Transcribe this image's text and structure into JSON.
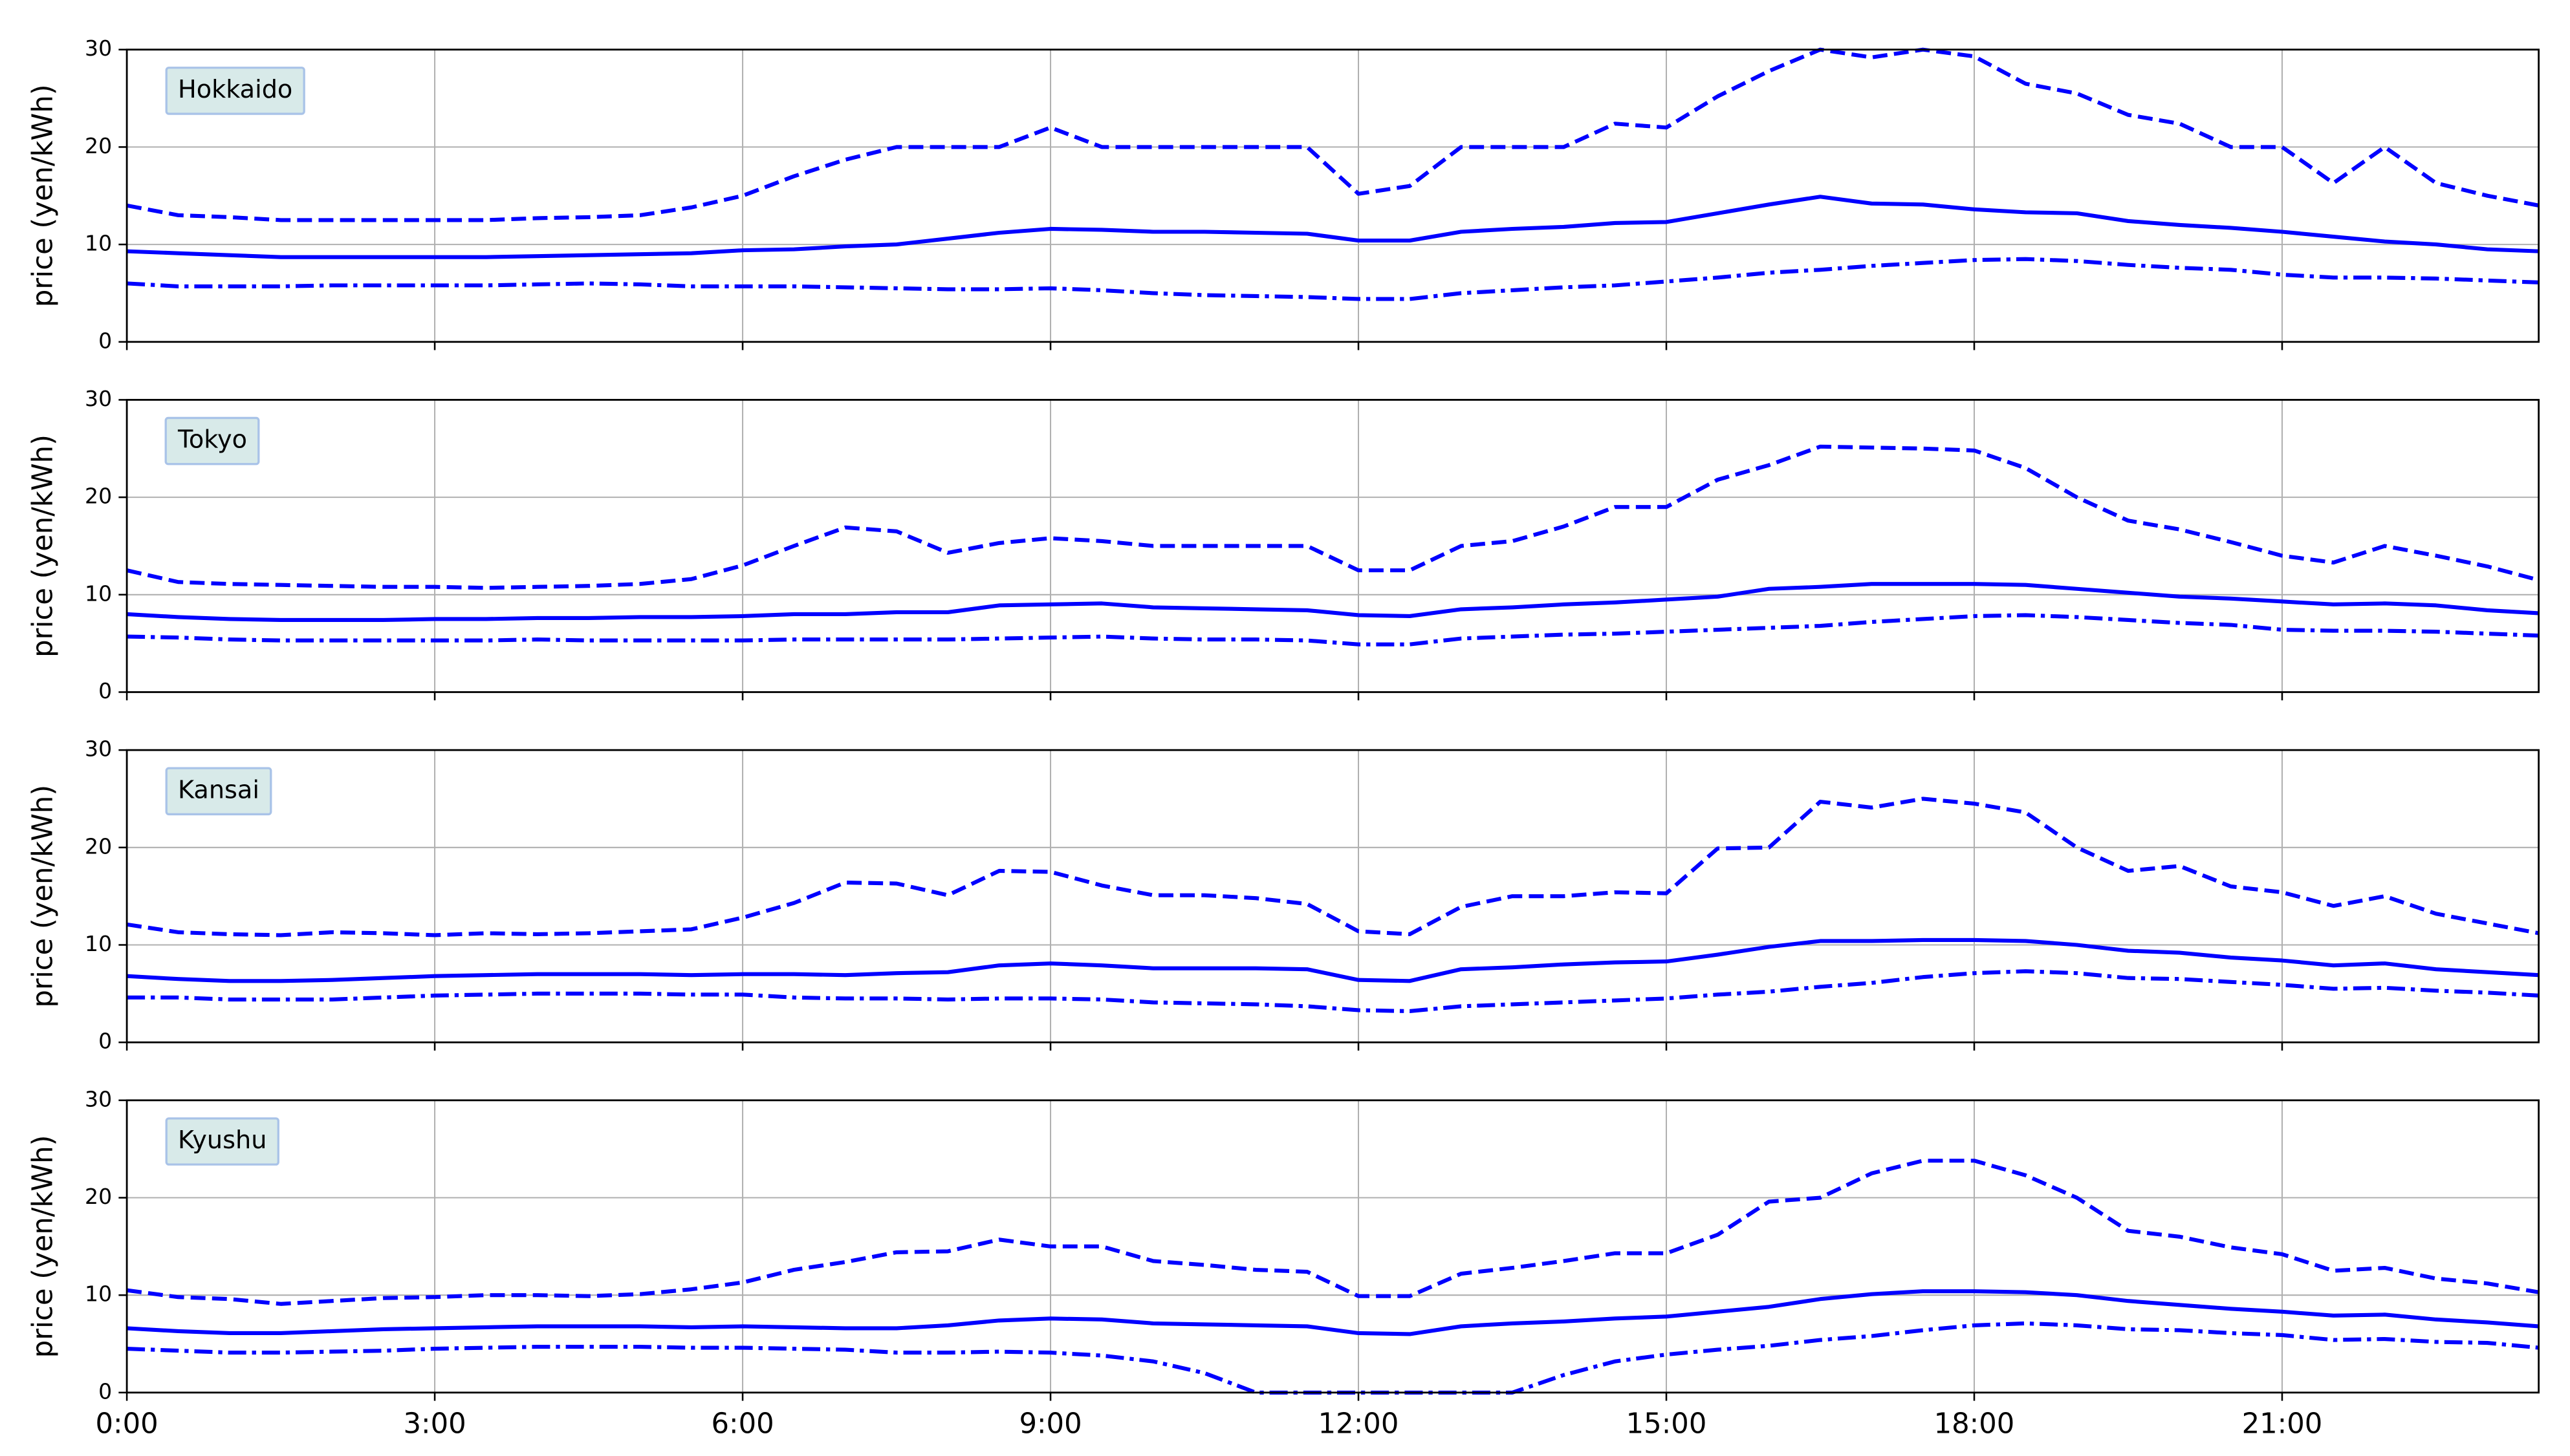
{
  "chart_data": [
    {
      "type": "line",
      "ylabel": "price (yen/kWh)",
      "annotation": "Hokkaido",
      "x": [
        0,
        0.5,
        1,
        1.5,
        2,
        2.5,
        3,
        3.5,
        4,
        4.5,
        5,
        5.5,
        6,
        6.5,
        7,
        7.5,
        8,
        8.5,
        9,
        9.5,
        10,
        10.5,
        11,
        11.5,
        12,
        12.5,
        13,
        13.5,
        14,
        14.5,
        15,
        15.5,
        16,
        16.5,
        17,
        17.5,
        18,
        18.5,
        19,
        19.5,
        20,
        20.5,
        21,
        21.5,
        22,
        22.5,
        23,
        23.5
      ],
      "xlim": [
        0,
        23.5
      ],
      "xticks": [
        0,
        3,
        6,
        9,
        12,
        15,
        18,
        21
      ],
      "ylim": [
        0,
        30
      ],
      "yticks": [
        0,
        10,
        20,
        30
      ],
      "grid": true,
      "series": [
        {
          "color": "#0000ff",
          "linestyle": "dashed",
          "values": [
            14,
            13,
            12.8,
            12.5,
            12.5,
            12.5,
            12.5,
            12.5,
            12.7,
            12.8,
            13,
            13.8,
            15,
            17,
            18.7,
            20,
            20,
            20,
            22,
            20,
            20,
            20,
            20,
            20,
            15.2,
            16,
            20,
            20,
            20,
            22.4,
            22,
            25.2,
            27.8,
            30,
            29.2,
            30,
            29.3,
            26.5,
            25.5,
            23.3,
            22.4,
            20,
            20,
            16.3,
            20,
            16.3,
            15,
            14
          ]
        },
        {
          "color": "#0000ff",
          "linestyle": "solid",
          "values": [
            9.3,
            9.1,
            8.9,
            8.7,
            8.7,
            8.7,
            8.7,
            8.7,
            8.8,
            8.9,
            9,
            9.1,
            9.4,
            9.5,
            9.8,
            10,
            10.6,
            11.2,
            11.6,
            11.5,
            11.3,
            11.3,
            11.2,
            11.1,
            10.4,
            10.4,
            11.3,
            11.6,
            11.8,
            12.2,
            12.3,
            13.2,
            14.1,
            14.9,
            14.2,
            14.1,
            13.6,
            13.3,
            13.2,
            12.4,
            12,
            11.7,
            11.3,
            10.8,
            10.3,
            10,
            9.5,
            9.3
          ]
        },
        {
          "color": "#0000ff",
          "linestyle": "dashdot",
          "values": [
            6,
            5.7,
            5.7,
            5.7,
            5.8,
            5.8,
            5.8,
            5.8,
            5.9,
            6,
            5.9,
            5.7,
            5.7,
            5.7,
            5.6,
            5.5,
            5.4,
            5.4,
            5.5,
            5.3,
            5,
            4.8,
            4.7,
            4.6,
            4.4,
            4.4,
            5,
            5.3,
            5.6,
            5.8,
            6.2,
            6.6,
            7.1,
            7.4,
            7.8,
            8.1,
            8.4,
            8.5,
            8.3,
            7.9,
            7.6,
            7.4,
            6.9,
            6.6,
            6.6,
            6.5,
            6.3,
            6.1
          ]
        }
      ]
    },
    {
      "type": "line",
      "ylabel": "price (yen/kWh)",
      "annotation": "Tokyo",
      "x": [
        0,
        0.5,
        1,
        1.5,
        2,
        2.5,
        3,
        3.5,
        4,
        4.5,
        5,
        5.5,
        6,
        6.5,
        7,
        7.5,
        8,
        8.5,
        9,
        9.5,
        10,
        10.5,
        11,
        11.5,
        12,
        12.5,
        13,
        13.5,
        14,
        14.5,
        15,
        15.5,
        16,
        16.5,
        17,
        17.5,
        18,
        18.5,
        19,
        19.5,
        20,
        20.5,
        21,
        21.5,
        22,
        22.5,
        23,
        23.5
      ],
      "xlim": [
        0,
        23.5
      ],
      "xticks": [
        0,
        3,
        6,
        9,
        12,
        15,
        18,
        21
      ],
      "ylim": [
        0,
        30
      ],
      "yticks": [
        0,
        10,
        20,
        30
      ],
      "grid": true,
      "series": [
        {
          "color": "#0000ff",
          "linestyle": "dashed",
          "values": [
            12.5,
            11.3,
            11.1,
            11,
            10.9,
            10.8,
            10.8,
            10.7,
            10.8,
            10.9,
            11.1,
            11.6,
            13,
            15,
            16.9,
            16.5,
            14.3,
            15.3,
            15.8,
            15.5,
            15,
            15,
            15,
            15,
            12.5,
            12.5,
            15,
            15.5,
            17,
            19,
            19,
            21.8,
            23.3,
            25.2,
            25.1,
            25,
            24.8,
            23,
            20,
            17.6,
            16.7,
            15.4,
            14,
            13.3,
            15,
            14,
            12.9,
            11.5
          ]
        },
        {
          "color": "#0000ff",
          "linestyle": "solid",
          "values": [
            8,
            7.7,
            7.5,
            7.4,
            7.4,
            7.4,
            7.5,
            7.5,
            7.6,
            7.6,
            7.7,
            7.7,
            7.8,
            8,
            8,
            8.2,
            8.2,
            8.9,
            9,
            9.1,
            8.7,
            8.6,
            8.5,
            8.4,
            7.9,
            7.8,
            8.5,
            8.7,
            9,
            9.2,
            9.5,
            9.8,
            10.6,
            10.8,
            11.1,
            11.1,
            11.1,
            11,
            10.6,
            10.2,
            9.8,
            9.6,
            9.3,
            9,
            9.1,
            8.9,
            8.4,
            8.1
          ]
        },
        {
          "color": "#0000ff",
          "linestyle": "dashdot",
          "values": [
            5.7,
            5.6,
            5.4,
            5.3,
            5.3,
            5.3,
            5.3,
            5.3,
            5.4,
            5.3,
            5.3,
            5.3,
            5.3,
            5.4,
            5.4,
            5.4,
            5.4,
            5.5,
            5.6,
            5.7,
            5.5,
            5.4,
            5.4,
            5.3,
            4.9,
            4.9,
            5.5,
            5.7,
            5.9,
            6,
            6.2,
            6.4,
            6.6,
            6.8,
            7.2,
            7.5,
            7.8,
            7.9,
            7.7,
            7.4,
            7.1,
            6.9,
            6.4,
            6.3,
            6.3,
            6.2,
            6,
            5.8
          ]
        }
      ]
    },
    {
      "type": "line",
      "ylabel": "price (yen/kWh)",
      "annotation": "Kansai",
      "x": [
        0,
        0.5,
        1,
        1.5,
        2,
        2.5,
        3,
        3.5,
        4,
        4.5,
        5,
        5.5,
        6,
        6.5,
        7,
        7.5,
        8,
        8.5,
        9,
        9.5,
        10,
        10.5,
        11,
        11.5,
        12,
        12.5,
        13,
        13.5,
        14,
        14.5,
        15,
        15.5,
        16,
        16.5,
        17,
        17.5,
        18,
        18.5,
        19,
        19.5,
        20,
        20.5,
        21,
        21.5,
        22,
        22.5,
        23,
        23.5
      ],
      "xlim": [
        0,
        23.5
      ],
      "xticks": [
        0,
        3,
        6,
        9,
        12,
        15,
        18,
        21
      ],
      "ylim": [
        0,
        30
      ],
      "yticks": [
        0,
        10,
        20,
        30
      ],
      "grid": true,
      "series": [
        {
          "color": "#0000ff",
          "linestyle": "dashed",
          "values": [
            12.1,
            11.3,
            11.1,
            11,
            11.3,
            11.2,
            11,
            11.2,
            11.1,
            11.2,
            11.4,
            11.6,
            12.8,
            14.3,
            16.4,
            16.3,
            15.1,
            17.6,
            17.5,
            16.1,
            15.1,
            15.1,
            14.8,
            14.2,
            11.4,
            11.1,
            13.9,
            15,
            15,
            15.4,
            15.3,
            19.9,
            20,
            24.7,
            24.1,
            25,
            24.5,
            23.6,
            20,
            17.6,
            18.1,
            16,
            15.4,
            14,
            15,
            13.2,
            12.2,
            11.2
          ]
        },
        {
          "color": "#0000ff",
          "linestyle": "solid",
          "values": [
            6.8,
            6.5,
            6.3,
            6.3,
            6.4,
            6.6,
            6.8,
            6.9,
            7,
            7,
            7,
            6.9,
            7,
            7,
            6.9,
            7.1,
            7.2,
            7.9,
            8.1,
            7.9,
            7.6,
            7.6,
            7.6,
            7.5,
            6.4,
            6.3,
            7.5,
            7.7,
            8,
            8.2,
            8.3,
            9,
            9.8,
            10.4,
            10.4,
            10.5,
            10.5,
            10.4,
            10,
            9.4,
            9.2,
            8.7,
            8.4,
            7.9,
            8.1,
            7.5,
            7.2,
            6.9
          ]
        },
        {
          "color": "#0000ff",
          "linestyle": "dashdot",
          "values": [
            4.6,
            4.6,
            4.4,
            4.4,
            4.4,
            4.6,
            4.8,
            4.9,
            5,
            5,
            5,
            4.9,
            4.9,
            4.6,
            4.5,
            4.5,
            4.4,
            4.5,
            4.5,
            4.4,
            4.1,
            4,
            3.9,
            3.7,
            3.3,
            3.2,
            3.7,
            3.9,
            4.1,
            4.3,
            4.5,
            4.9,
            5.2,
            5.7,
            6.1,
            6.7,
            7.1,
            7.3,
            7.1,
            6.6,
            6.5,
            6.2,
            5.9,
            5.5,
            5.6,
            5.3,
            5.1,
            4.8
          ]
        }
      ]
    },
    {
      "type": "line",
      "ylabel": "price (yen/kWh)",
      "annotation": "Kyushu",
      "x": [
        0,
        0.5,
        1,
        1.5,
        2,
        2.5,
        3,
        3.5,
        4,
        4.5,
        5,
        5.5,
        6,
        6.5,
        7,
        7.5,
        8,
        8.5,
        9,
        9.5,
        10,
        10.5,
        11,
        11.5,
        12,
        12.5,
        13,
        13.5,
        14,
        14.5,
        15,
        15.5,
        16,
        16.5,
        17,
        17.5,
        18,
        18.5,
        19,
        19.5,
        20,
        20.5,
        21,
        21.5,
        22,
        22.5,
        23,
        23.5
      ],
      "xlim": [
        0,
        23.5
      ],
      "xticks": [
        {
          "value": 0,
          "label": "0:00"
        },
        {
          "value": 3,
          "label": "3:00"
        },
        {
          "value": 6,
          "label": "6:00"
        },
        {
          "value": 9,
          "label": "9:00"
        },
        {
          "value": 12,
          "label": "12:00"
        },
        {
          "value": 15,
          "label": "15:00"
        },
        {
          "value": 18,
          "label": "18:00"
        },
        {
          "value": 21,
          "label": "21:00"
        }
      ],
      "ylim": [
        0,
        30
      ],
      "yticks": [
        0,
        10,
        20,
        30
      ],
      "grid": true,
      "series": [
        {
          "color": "#0000ff",
          "linestyle": "dashed",
          "values": [
            10.5,
            9.8,
            9.6,
            9.1,
            9.4,
            9.7,
            9.8,
            10,
            10,
            9.9,
            10.1,
            10.6,
            11.3,
            12.6,
            13.4,
            14.4,
            14.5,
            15.7,
            15,
            15,
            13.5,
            13.1,
            12.6,
            12.4,
            9.9,
            9.9,
            12.2,
            12.8,
            13.5,
            14.3,
            14.3,
            16.2,
            19.6,
            20,
            22.5,
            23.8,
            23.8,
            22.3,
            20,
            16.6,
            16,
            14.9,
            14.2,
            12.5,
            12.8,
            11.7,
            11.2,
            10.3
          ]
        },
        {
          "color": "#0000ff",
          "linestyle": "solid",
          "values": [
            6.6,
            6.3,
            6.1,
            6.1,
            6.3,
            6.5,
            6.6,
            6.7,
            6.8,
            6.8,
            6.8,
            6.7,
            6.8,
            6.7,
            6.6,
            6.6,
            6.9,
            7.4,
            7.6,
            7.5,
            7.1,
            7,
            6.9,
            6.8,
            6.1,
            6,
            6.8,
            7.1,
            7.3,
            7.6,
            7.8,
            8.3,
            8.8,
            9.6,
            10.1,
            10.4,
            10.4,
            10.3,
            10,
            9.4,
            9,
            8.6,
            8.3,
            7.9,
            8,
            7.5,
            7.2,
            6.8
          ]
        },
        {
          "color": "#0000ff",
          "linestyle": "dashdot",
          "values": [
            4.5,
            4.3,
            4.1,
            4.1,
            4.2,
            4.3,
            4.5,
            4.6,
            4.7,
            4.7,
            4.7,
            4.6,
            4.6,
            4.5,
            4.4,
            4.1,
            4.1,
            4.2,
            4.1,
            3.8,
            3.2,
            2,
            0,
            0,
            0,
            0,
            0,
            0,
            1.8,
            3.2,
            3.9,
            4.4,
            4.8,
            5.4,
            5.8,
            6.4,
            6.9,
            7.1,
            6.9,
            6.5,
            6.4,
            6.1,
            5.9,
            5.4,
            5.5,
            5.2,
            5.1,
            4.6
          ]
        }
      ]
    }
  ]
}
